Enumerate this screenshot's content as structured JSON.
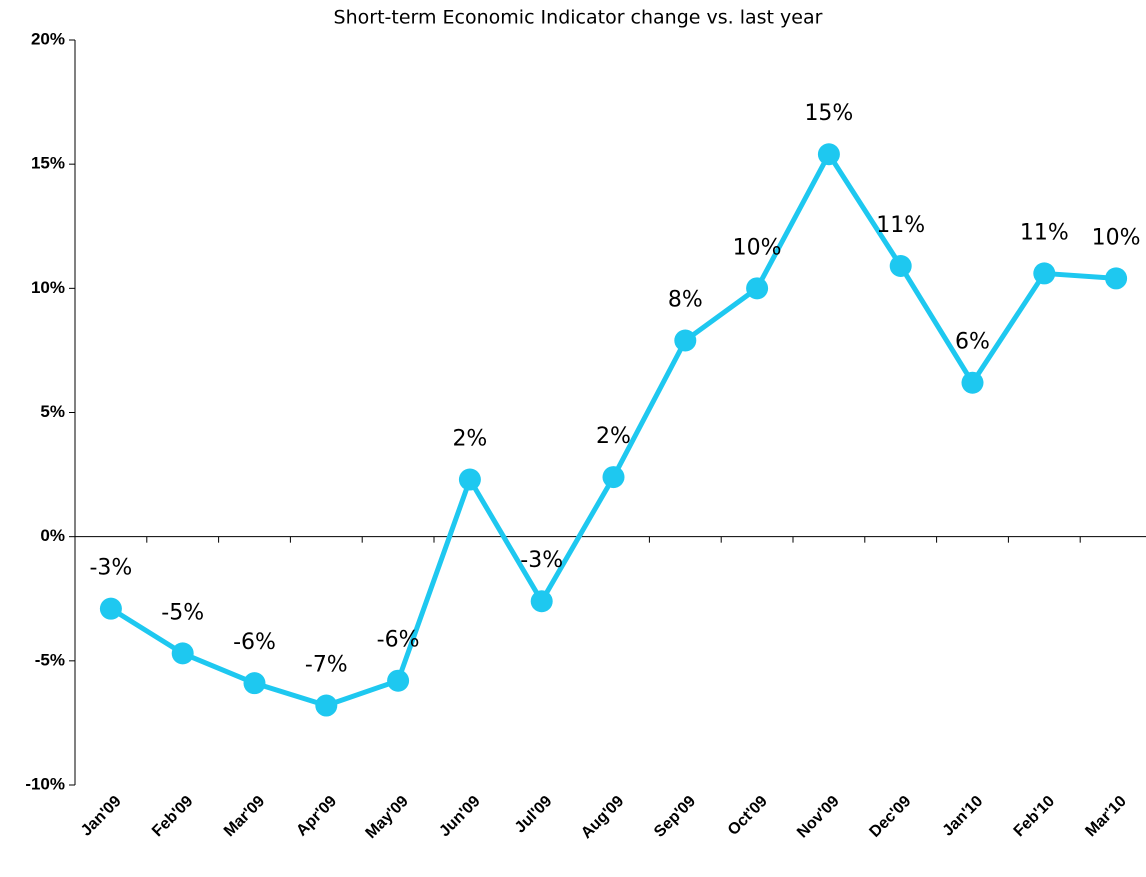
{
  "chart_data": {
    "type": "line",
    "title": "Short-term Economic Indicator change vs. last year",
    "categories": [
      "Jan'09",
      "Feb'09",
      "Mar'09",
      "Apr'09",
      "May'09",
      "Jun'09",
      "Jul'09",
      "Aug'09",
      "Sep'09",
      "Oct'09",
      "Nov'09",
      "Dec'09",
      "Jan'10",
      "Feb'10",
      "Mar'10"
    ],
    "series": [
      {
        "name": "Change vs. last year",
        "color": "#1ec8f0",
        "values": [
          -2.9,
          -4.7,
          -5.9,
          -6.8,
          -5.8,
          2.3,
          -2.6,
          2.4,
          7.9,
          10.0,
          15.4,
          10.9,
          6.2,
          10.6,
          10.4
        ],
        "value_labels": [
          "-3%",
          "-5%",
          "-6%",
          "-7%",
          "-6%",
          "2%",
          "-3%",
          "2%",
          "8%",
          "10%",
          "15%",
          "11%",
          "6%",
          "11%",
          "10%"
        ]
      }
    ],
    "ylim": [
      -10,
      20
    ],
    "yticks": [
      {
        "value": -10,
        "label": "-10%"
      },
      {
        "value": -5,
        "label": "-5%"
      },
      {
        "value": 0,
        "label": "0%"
      },
      {
        "value": 5,
        "label": "5%"
      },
      {
        "value": 10,
        "label": "10%"
      },
      {
        "value": 15,
        "label": "15%"
      },
      {
        "value": 20,
        "label": "20%"
      }
    ]
  }
}
